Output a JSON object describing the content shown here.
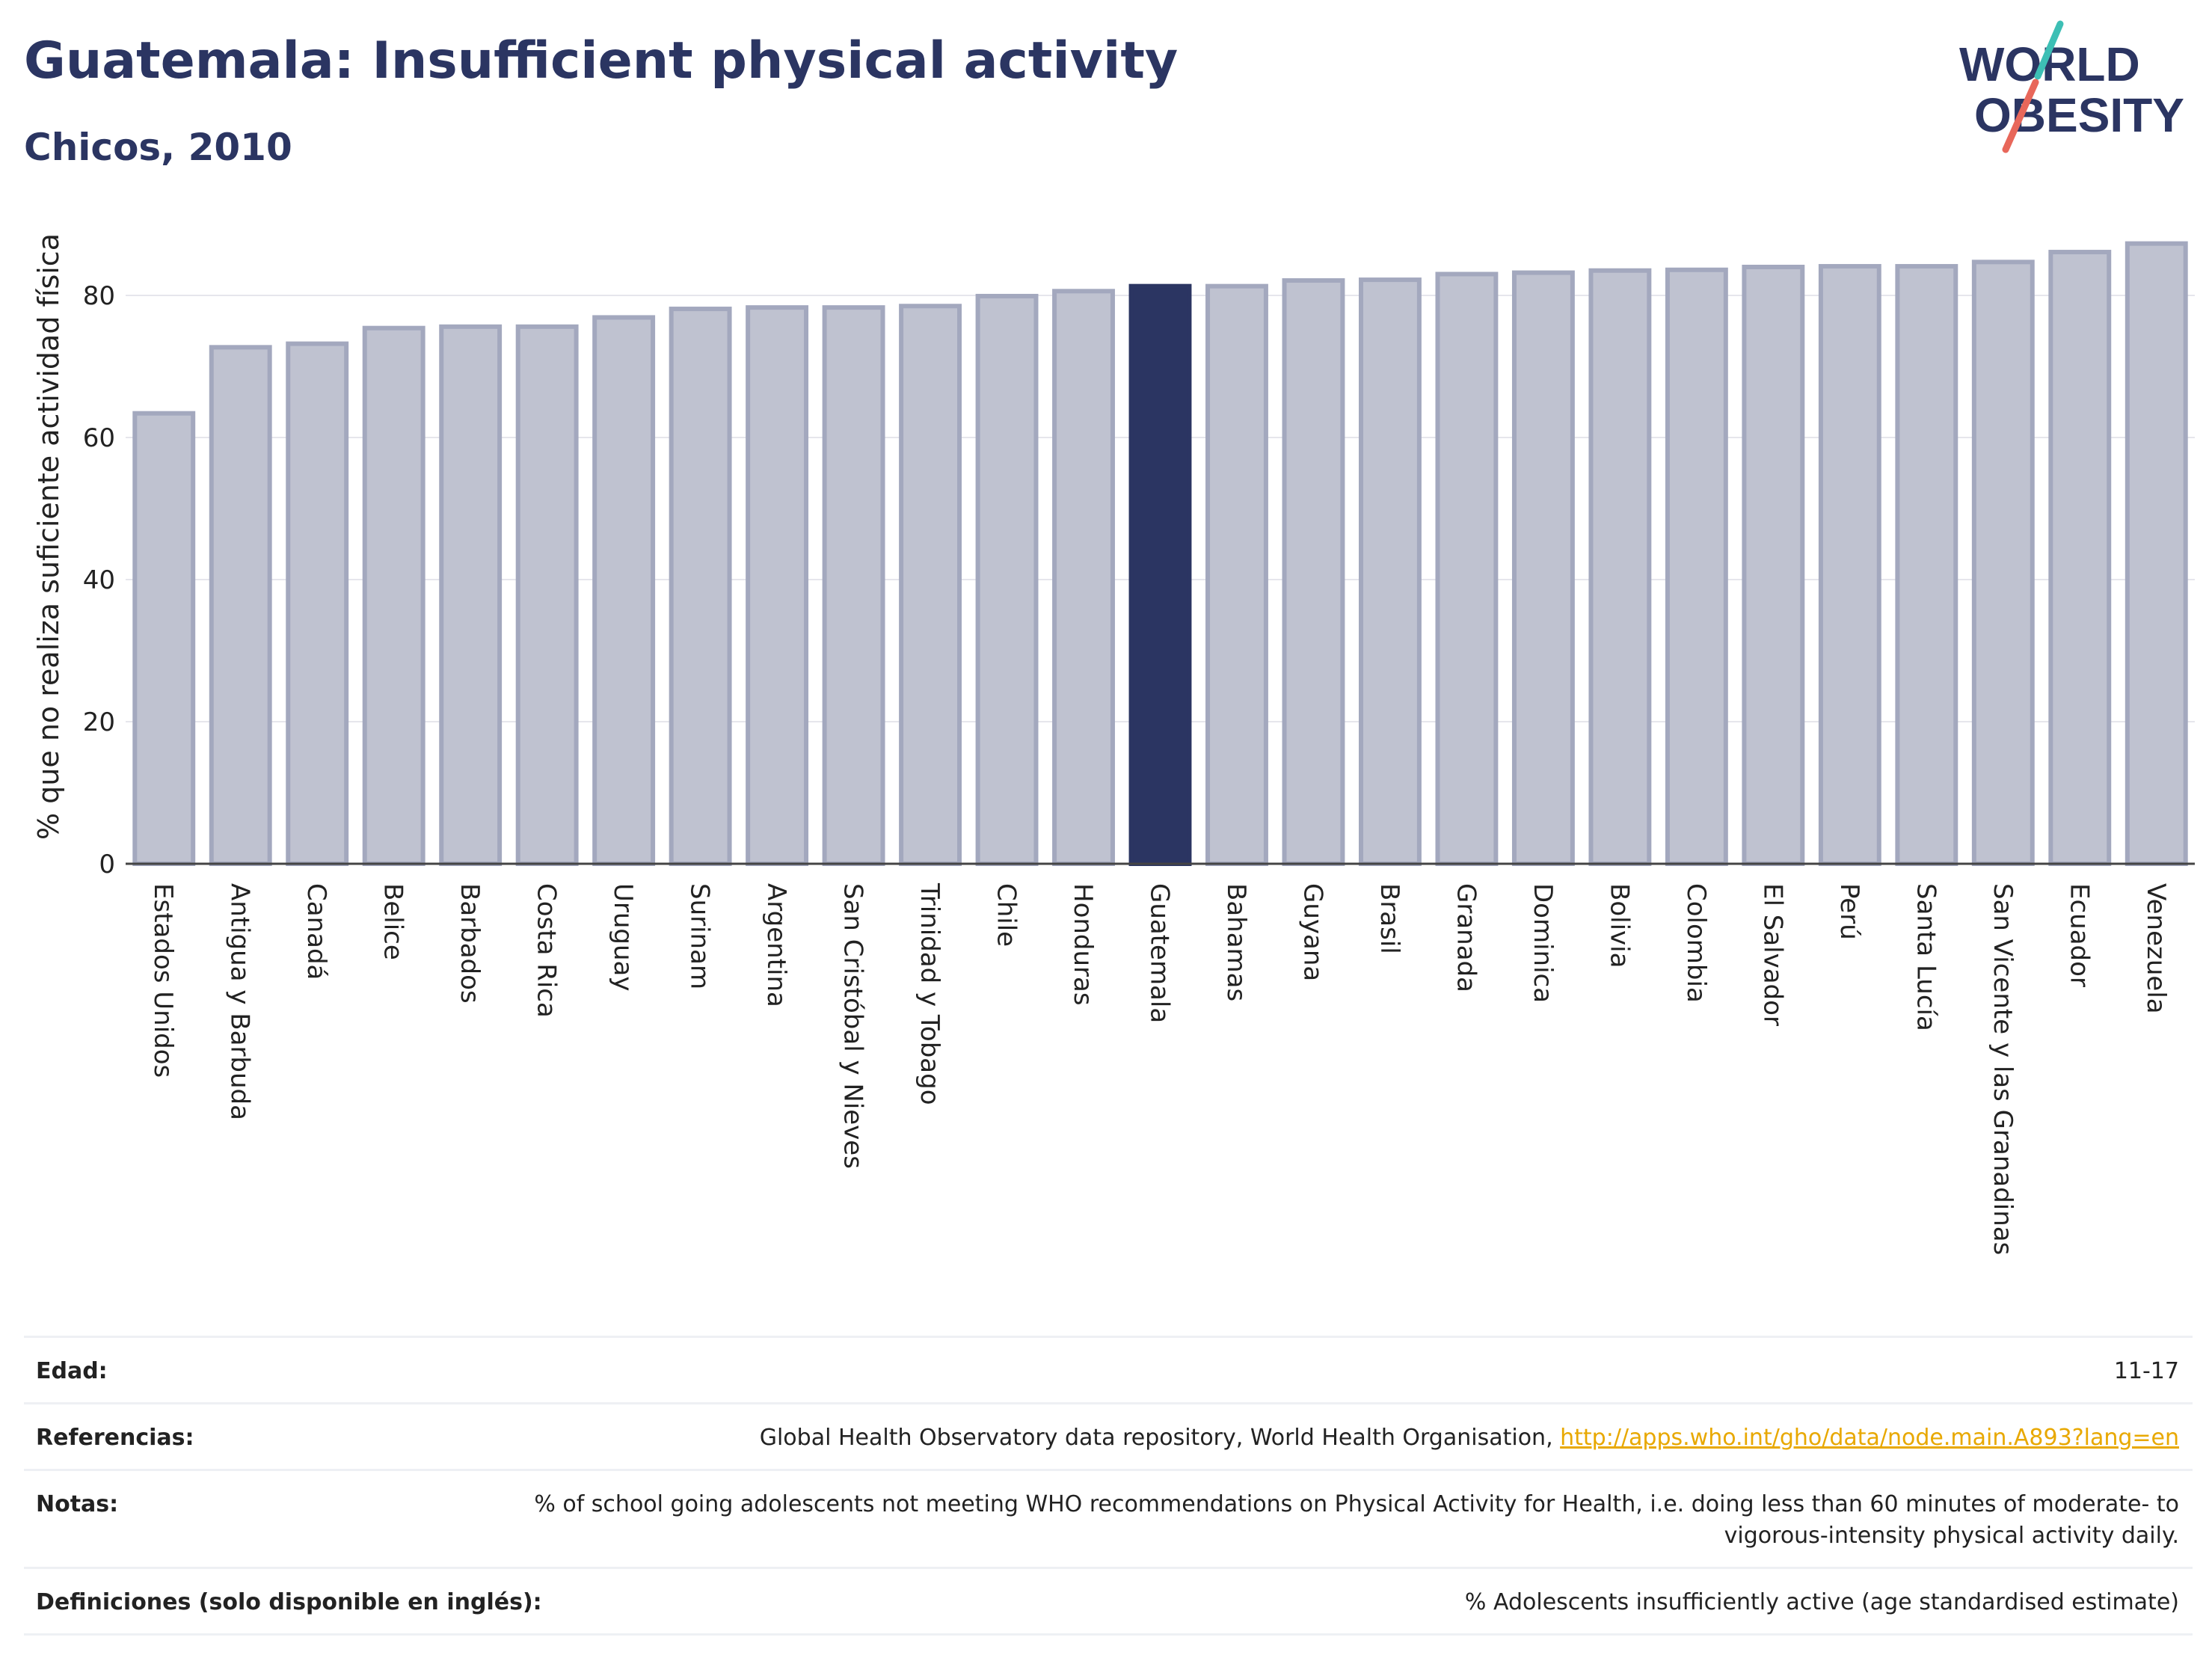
{
  "header": {
    "title": "Guatemala: Insufficient physical activity",
    "subtitle": "Chicos, 2010"
  },
  "logo": {
    "line1": "WORLD",
    "line2": "OBESITY",
    "colors": {
      "text": "#2b3562",
      "slash_top": "#3dbfb5",
      "slash_bottom": "#e8675a"
    }
  },
  "chart_data": {
    "type": "bar",
    "ylabel": "% que no realiza suficiente actividad física",
    "ylim": [
      0,
      90
    ],
    "yticks": [
      0,
      20,
      40,
      60,
      80
    ],
    "grid": true,
    "highlight": "Guatemala",
    "colors": {
      "bar": "#bfc2d0",
      "bar_border": "#a3a8be",
      "highlight": "#2b3562",
      "grid": "#e6e6ec"
    },
    "categories": [
      "Estados Unidos",
      "Antigua y Barbuda",
      "Canadá",
      "Belice",
      "Barbados",
      "Costa Rica",
      "Uruguay",
      "Surinam",
      "Argentina",
      "San Cristóbal y Nieves",
      "Trinidad y Tobago",
      "Chile",
      "Honduras",
      "Guatemala",
      "Bahamas",
      "Guyana",
      "Brasil",
      "Granada",
      "Dominica",
      "Bolivia",
      "Colombia",
      "El Salvador",
      "Perú",
      "Santa Lucía",
      "San Vicente y las Granadinas",
      "Ecuador",
      "Venezuela"
    ],
    "values": [
      63.4,
      72.7,
      73.2,
      75.4,
      75.6,
      75.6,
      76.9,
      78.1,
      78.3,
      78.3,
      78.5,
      79.9,
      80.6,
      81.3,
      81.3,
      82.1,
      82.2,
      83.0,
      83.2,
      83.5,
      83.6,
      84.0,
      84.1,
      84.1,
      84.7,
      86.1,
      87.3
    ]
  },
  "info_table": [
    {
      "label": "Edad:",
      "value": "11-17"
    },
    {
      "label": "Referencias:",
      "value": "Global Health Observatory data repository, World Health Organisation, ",
      "link": "http://apps.who.int/gho/data/node.main.A893?lang=en"
    },
    {
      "label": "Notas:",
      "value": "% of school going adolescents not meeting WHO recommendations on Physical Activity for Health, i.e. doing less than 60 minutes of moderate- to vigorous-intensity physical activity daily."
    },
    {
      "label": "Definiciones (solo disponible en inglés):",
      "value": "% Adolescents insufficiently active (age standardised estimate)"
    }
  ]
}
